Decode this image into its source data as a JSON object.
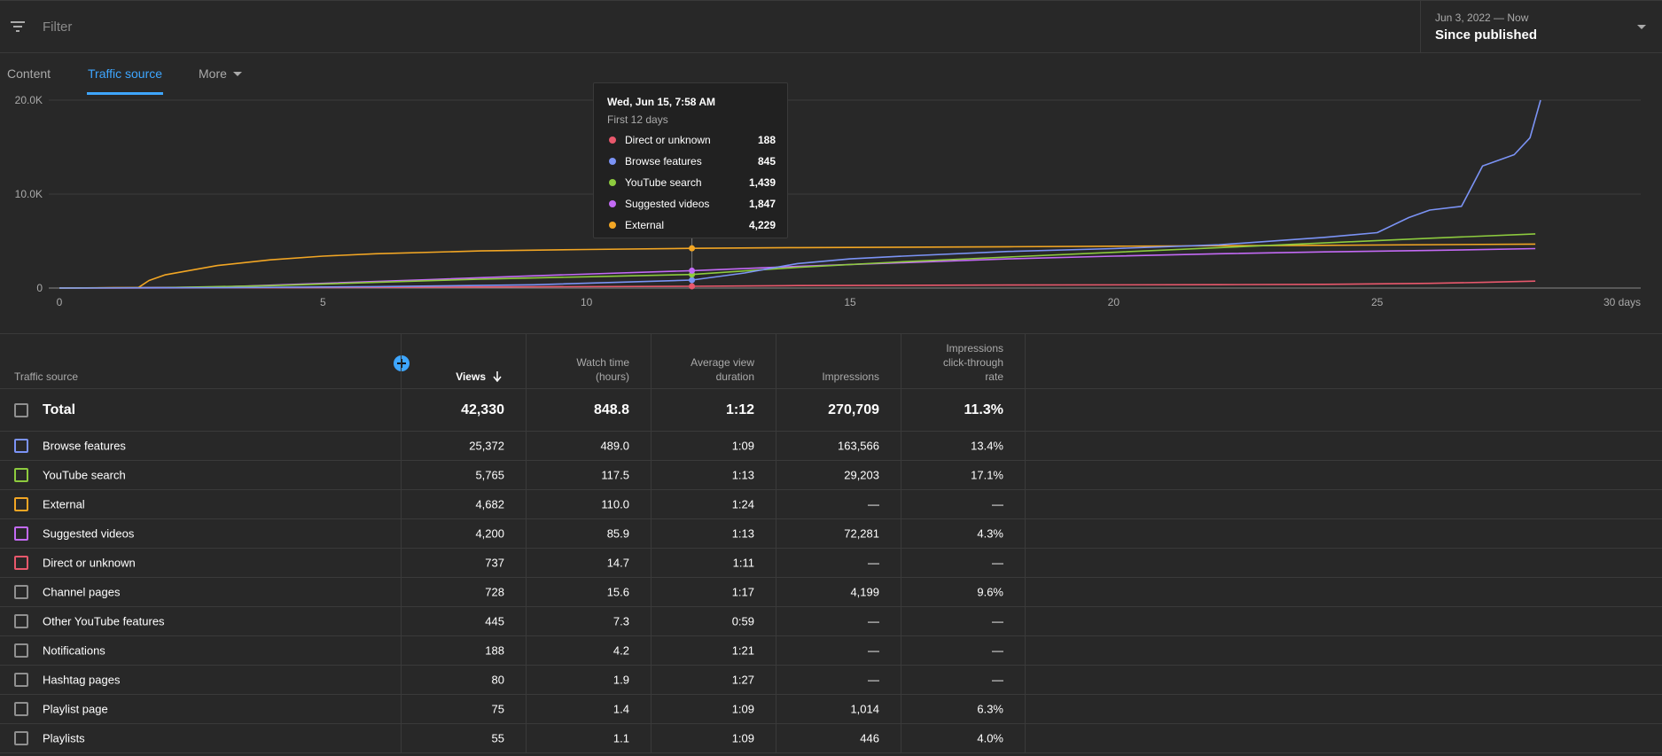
{
  "filter": {
    "placeholder": "Filter"
  },
  "date": {
    "range": "Jun 3, 2022 — Now",
    "label": "Since published"
  },
  "tabs": [
    {
      "label": "Content",
      "active": false
    },
    {
      "label": "Traffic source",
      "active": true
    },
    {
      "label": "More",
      "active": false
    }
  ],
  "tooltip": {
    "title": "Wed, Jun 15, 7:58 AM",
    "subtitle": "First 12 days",
    "rows": [
      {
        "label": "Direct or unknown",
        "value": "188",
        "color": "#e8586c"
      },
      {
        "label": "Browse features",
        "value": "845",
        "color": "#7b93f5"
      },
      {
        "label": "YouTube search",
        "value": "1,439",
        "color": "#8dcb3e"
      },
      {
        "label": "Suggested videos",
        "value": "1,847",
        "color": "#c36af5"
      },
      {
        "label": "External",
        "value": "4,229",
        "color": "#f2a624"
      }
    ]
  },
  "chart_data": {
    "type": "line",
    "xlabel": "",
    "ylabel": "",
    "xlim": [
      0,
      30
    ],
    "ylim": [
      0,
      20000
    ],
    "x_ticks": [
      "0",
      "5",
      "10",
      "15",
      "20",
      "25",
      "30 days"
    ],
    "y_ticks": [
      "0",
      "10.0K",
      "20.0K"
    ],
    "series": [
      {
        "name": "Browse features",
        "color": "#7b93f5",
        "points": [
          [
            0,
            0
          ],
          [
            3,
            40
          ],
          [
            6,
            150
          ],
          [
            9,
            350
          ],
          [
            12,
            845
          ],
          [
            13,
            1600
          ],
          [
            14,
            2600
          ],
          [
            15,
            3100
          ],
          [
            16,
            3400
          ],
          [
            18,
            3900
          ],
          [
            20,
            4200
          ],
          [
            22,
            4600
          ],
          [
            24,
            5400
          ],
          [
            25,
            5900
          ],
          [
            25.6,
            7500
          ],
          [
            26,
            8300
          ],
          [
            26.6,
            8700
          ],
          [
            27,
            13000
          ],
          [
            27.6,
            14200
          ],
          [
            27.9,
            16000
          ],
          [
            28.1,
            20000
          ]
        ]
      },
      {
        "name": "YouTube search",
        "color": "#8dcb3e",
        "points": [
          [
            0,
            0
          ],
          [
            2,
            50
          ],
          [
            4,
            250
          ],
          [
            6,
            600
          ],
          [
            8,
            950
          ],
          [
            10,
            1200
          ],
          [
            12,
            1439
          ],
          [
            14,
            2200
          ],
          [
            16,
            2800
          ],
          [
            18,
            3300
          ],
          [
            20,
            3800
          ],
          [
            22,
            4300
          ],
          [
            24,
            4800
          ],
          [
            26,
            5300
          ],
          [
            28,
            5765
          ]
        ]
      },
      {
        "name": "External",
        "color": "#f2a624",
        "points": [
          [
            0,
            0
          ],
          [
            1.5,
            60
          ],
          [
            1.7,
            800
          ],
          [
            2,
            1400
          ],
          [
            3,
            2400
          ],
          [
            4,
            3000
          ],
          [
            5,
            3400
          ],
          [
            6,
            3650
          ],
          [
            8,
            3950
          ],
          [
            10,
            4100
          ],
          [
            12,
            4229
          ],
          [
            14,
            4300
          ],
          [
            16,
            4350
          ],
          [
            18,
            4400
          ],
          [
            20,
            4450
          ],
          [
            24,
            4550
          ],
          [
            28,
            4682
          ]
        ]
      },
      {
        "name": "Suggested videos",
        "color": "#c36af5",
        "points": [
          [
            0,
            0
          ],
          [
            3,
            100
          ],
          [
            5,
            500
          ],
          [
            7,
            900
          ],
          [
            9,
            1300
          ],
          [
            12,
            1847
          ],
          [
            14,
            2300
          ],
          [
            16,
            2700
          ],
          [
            18,
            3100
          ],
          [
            20,
            3400
          ],
          [
            22,
            3650
          ],
          [
            24,
            3850
          ],
          [
            26,
            4000
          ],
          [
            28,
            4200
          ]
        ]
      },
      {
        "name": "Direct or unknown",
        "color": "#e8586c",
        "points": [
          [
            0,
            0
          ],
          [
            4,
            40
          ],
          [
            8,
            110
          ],
          [
            12,
            188
          ],
          [
            14,
            260
          ],
          [
            18,
            320
          ],
          [
            22,
            360
          ],
          [
            24,
            400
          ],
          [
            26,
            500
          ],
          [
            27,
            600
          ],
          [
            28,
            737
          ]
        ]
      }
    ]
  },
  "table": {
    "headers": {
      "source": "Traffic source",
      "views": "Views",
      "watch": "Watch time (hours)",
      "avg": "Average view duration",
      "impr": "Impressions",
      "ctr": "Impressions click-through rate"
    },
    "total": {
      "label": "Total",
      "views": "42,330",
      "watch": "848.8",
      "avg": "1:12",
      "impr": "270,709",
      "ctr": "11.3%"
    },
    "rows": [
      {
        "label": "Browse features",
        "views": "25,372",
        "watch": "489.0",
        "avg": "1:09",
        "impr": "163,566",
        "ctr": "13.4%",
        "color": "#7b93f5"
      },
      {
        "label": "YouTube search",
        "views": "5,765",
        "watch": "117.5",
        "avg": "1:13",
        "impr": "29,203",
        "ctr": "17.1%",
        "color": "#8dcb3e"
      },
      {
        "label": "External",
        "views": "4,682",
        "watch": "110.0",
        "avg": "1:24",
        "impr": "—",
        "ctr": "—",
        "color": "#f2a624"
      },
      {
        "label": "Suggested videos",
        "views": "4,200",
        "watch": "85.9",
        "avg": "1:13",
        "impr": "72,281",
        "ctr": "4.3%",
        "color": "#c36af5"
      },
      {
        "label": "Direct or unknown",
        "views": "737",
        "watch": "14.7",
        "avg": "1:11",
        "impr": "—",
        "ctr": "—",
        "color": "#e8586c"
      },
      {
        "label": "Channel pages",
        "views": "728",
        "watch": "15.6",
        "avg": "1:17",
        "impr": "4,199",
        "ctr": "9.6%",
        "color": "#909090"
      },
      {
        "label": "Other YouTube features",
        "views": "445",
        "watch": "7.3",
        "avg": "0:59",
        "impr": "—",
        "ctr": "—",
        "color": "#909090"
      },
      {
        "label": "Notifications",
        "views": "188",
        "watch": "4.2",
        "avg": "1:21",
        "impr": "—",
        "ctr": "—",
        "color": "#909090"
      },
      {
        "label": "Hashtag pages",
        "views": "80",
        "watch": "1.9",
        "avg": "1:27",
        "impr": "—",
        "ctr": "—",
        "color": "#909090"
      },
      {
        "label": "Playlist page",
        "views": "75",
        "watch": "1.4",
        "avg": "1:09",
        "impr": "1,014",
        "ctr": "6.3%",
        "color": "#909090"
      },
      {
        "label": "Playlists",
        "views": "55",
        "watch": "1.1",
        "avg": "1:09",
        "impr": "446",
        "ctr": "4.0%",
        "color": "#909090"
      }
    ]
  }
}
